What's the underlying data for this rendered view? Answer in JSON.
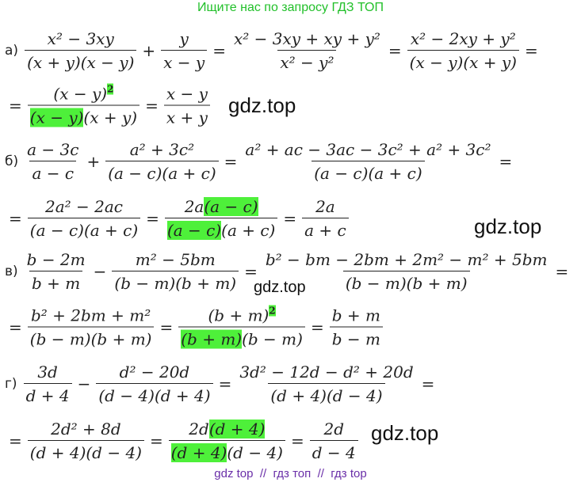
{
  "header": "Ищите нас по запросу ГДЗ ТОП",
  "rows": [
    {
      "label": "а)",
      "items": [
        {
          "num": [
            "x² − 3xy"
          ],
          "den": [
            "(x + y)(x − y)"
          ]
        },
        "+",
        {
          "num": [
            "y"
          ],
          "den": [
            "x − y"
          ]
        },
        "=",
        {
          "num": [
            "x² − 3xy + xy + y²"
          ],
          "den": [
            "x² − y²"
          ]
        },
        "=",
        {
          "num": [
            "x² − 2xy + y²"
          ],
          "den": [
            "(x − y)(x + y)"
          ]
        },
        "="
      ]
    },
    {
      "items": [
        "=",
        {
          "num": [
            "(x − y)",
            {
              "text": "2",
              "sup": true,
              "highlight": true
            }
          ],
          "den": [
            {
              "text": "(x − y)",
              "highlight": true
            },
            "(x + y)"
          ]
        },
        "=",
        {
          "num": [
            "x − y"
          ],
          "den": [
            "x + y"
          ]
        }
      ]
    },
    {
      "label": "б)",
      "items": [
        {
          "num": [
            "a − 3c"
          ],
          "den": [
            "a − c"
          ]
        },
        "+",
        {
          "num": [
            "a² + 3c²"
          ],
          "den": [
            "(a − c)(a + c)"
          ]
        },
        "=",
        {
          "num": [
            "a² + ac − 3ac − 3c² + a² + 3c²"
          ],
          "den": [
            "(a − c)(a + c)"
          ]
        },
        "="
      ]
    },
    {
      "items": [
        "=",
        {
          "num": [
            "2a² − 2ac"
          ],
          "den": [
            "(a − c)(a + c)"
          ]
        },
        "=",
        {
          "num": [
            "2a",
            {
              "text": "(a − c)",
              "highlight": true
            }
          ],
          "den": [
            {
              "text": "(a − c)",
              "highlight": true
            },
            "(a + c)"
          ]
        },
        "=",
        {
          "num": [
            "2a"
          ],
          "den": [
            "a + c"
          ]
        }
      ]
    },
    {
      "label": "в)",
      "items": [
        {
          "num": [
            "b − 2m"
          ],
          "den": [
            "b + m"
          ]
        },
        "−",
        {
          "num": [
            "m² − 5bm"
          ],
          "den": [
            "(b − m)(b + m)"
          ]
        },
        "=",
        {
          "num": [
            "b² − bm − 2bm + 2m² − m² + 5bm"
          ],
          "den": [
            "(b − m)(b + m)"
          ]
        },
        "="
      ]
    },
    {
      "items": [
        "=",
        {
          "num": [
            "b² + 2bm + m²"
          ],
          "den": [
            "(b − m)(b + m)"
          ]
        },
        "=",
        {
          "num": [
            "(b + m)",
            {
              "text": "2",
              "sup": true,
              "highlight": true
            }
          ],
          "den": [
            {
              "text": "(b + m)",
              "highlight": true
            },
            "(b − m)"
          ]
        },
        "=",
        {
          "num": [
            "b + m"
          ],
          "den": [
            "b − m"
          ]
        }
      ]
    },
    {
      "label": "г)",
      "items": [
        {
          "num": [
            "3d"
          ],
          "den": [
            "d + 4"
          ]
        },
        "−",
        {
          "num": [
            "d² − 20d"
          ],
          "den": [
            "(d − 4)(d + 4)"
          ]
        },
        "=",
        {
          "num": [
            "3d² − 12d − d² + 20d"
          ],
          "den": [
            "(d + 4)(d − 4)"
          ]
        },
        "="
      ]
    },
    {
      "items": [
        "=",
        {
          "num": [
            "2d² + 8d"
          ],
          "den": [
            "(d + 4)(d − 4)"
          ]
        },
        "=",
        {
          "num": [
            "2d",
            {
              "text": "(d + 4)",
              "highlight": true
            }
          ],
          "den": [
            {
              "text": "(d + 4)",
              "highlight": true
            },
            "(d − 4)"
          ]
        },
        "=",
        {
          "num": [
            "2d"
          ],
          "den": [
            "d − 4"
          ]
        }
      ]
    }
  ],
  "watermarks": [
    "gdz.top",
    "gdz.top",
    "gdz.top",
    "gdz.top"
  ],
  "footer": "gdz top  //  гдз топ  //  гдз top"
}
